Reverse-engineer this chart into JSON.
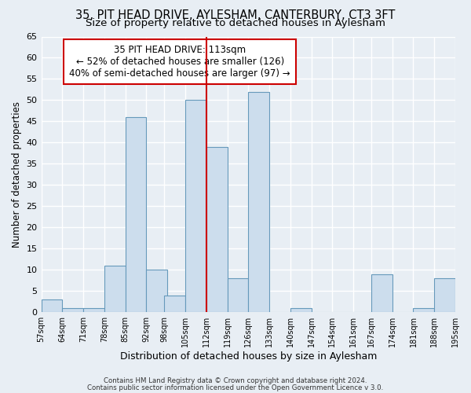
{
  "title": "35, PIT HEAD DRIVE, AYLESHAM, CANTERBURY, CT3 3FT",
  "subtitle": "Size of property relative to detached houses in Aylesham",
  "xlabel": "Distribution of detached houses by size in Aylesham",
  "ylabel": "Number of detached properties",
  "bin_starts": [
    57,
    64,
    71,
    78,
    85,
    92,
    98,
    105,
    112,
    119,
    126,
    133,
    140,
    147,
    154,
    161,
    167,
    174,
    181,
    188
  ],
  "bin_width": 7,
  "bin_labels": [
    "57sqm",
    "64sqm",
    "71sqm",
    "78sqm",
    "85sqm",
    "92sqm",
    "98sqm",
    "105sqm",
    "112sqm",
    "119sqm",
    "126sqm",
    "133sqm",
    "140sqm",
    "147sqm",
    "154sqm",
    "161sqm",
    "167sqm",
    "174sqm",
    "181sqm",
    "188sqm",
    "195sqm"
  ],
  "counts": [
    3,
    1,
    1,
    11,
    46,
    10,
    4,
    50,
    39,
    8,
    52,
    0,
    1,
    0,
    0,
    0,
    9,
    0,
    1,
    8
  ],
  "bar_color": "#ccdded",
  "bar_edge_color": "#6699bb",
  "vline_x": 112,
  "vline_color": "#cc0000",
  "ylim": [
    0,
    65
  ],
  "yticks": [
    0,
    5,
    10,
    15,
    20,
    25,
    30,
    35,
    40,
    45,
    50,
    55,
    60,
    65
  ],
  "annotation_title": "35 PIT HEAD DRIVE: 113sqm",
  "annotation_line1": "← 52% of detached houses are smaller (126)",
  "annotation_line2": "40% of semi-detached houses are larger (97) →",
  "annotation_box_color": "#cc0000",
  "footer1": "Contains HM Land Registry data © Crown copyright and database right 2024.",
  "footer2": "Contains public sector information licensed under the Open Government Licence v 3.0.",
  "bg_color": "#e8eef4",
  "grid_color": "#ffffff",
  "title_fontsize": 10.5,
  "subtitle_fontsize": 9.5,
  "annotation_fontsize": 8.5,
  "xlabel_fontsize": 9,
  "ylabel_fontsize": 8.5
}
